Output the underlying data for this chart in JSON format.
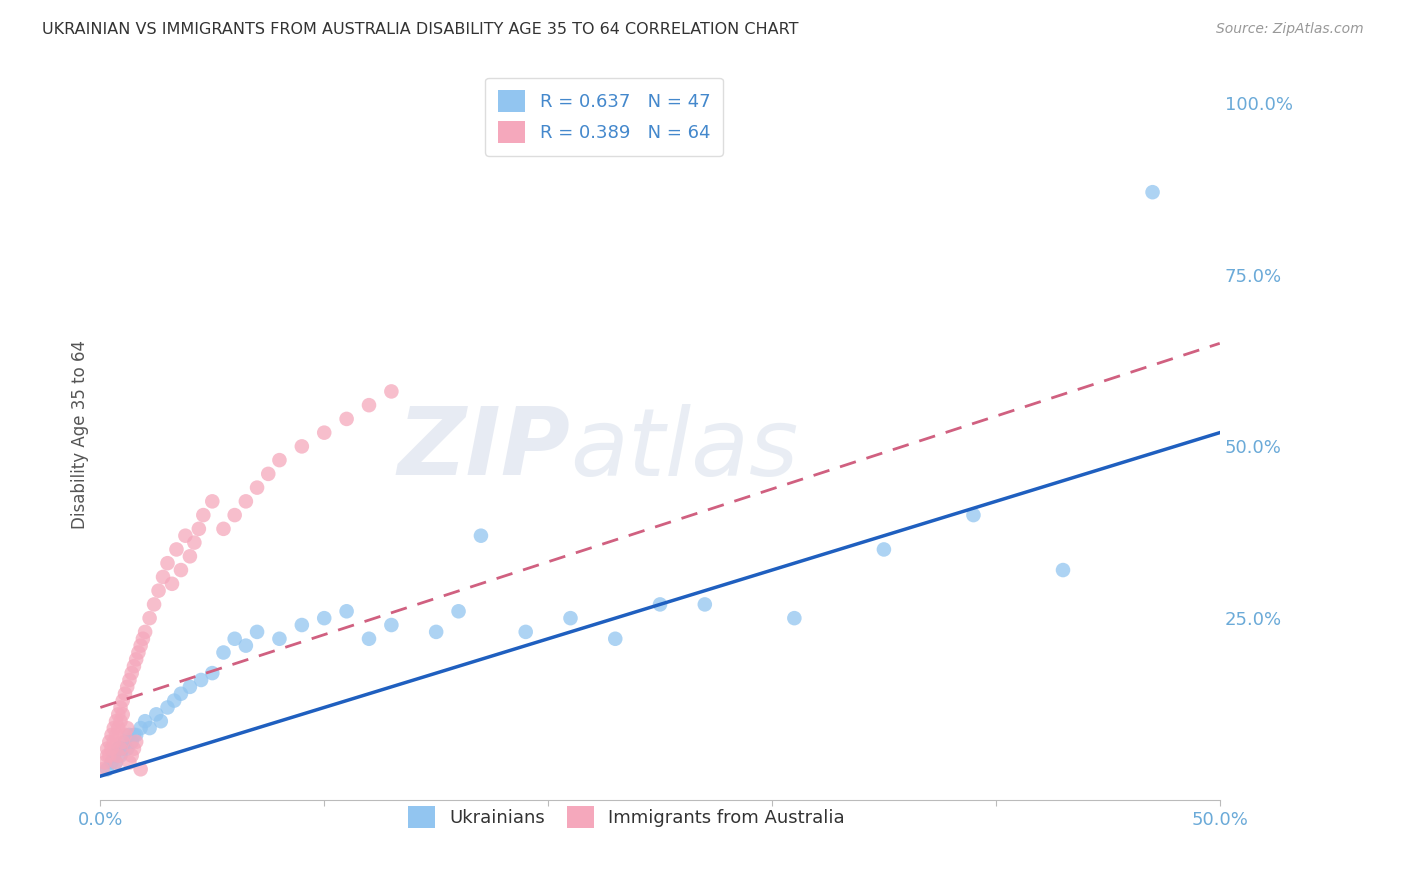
{
  "title": "UKRAINIAN VS IMMIGRANTS FROM AUSTRALIA DISABILITY AGE 35 TO 64 CORRELATION CHART",
  "source_text": "Source: ZipAtlas.com",
  "ylabel": "Disability Age 35 to 64",
  "watermark_zip": "ZIP",
  "watermark_atlas": "atlas",
  "xlim": [
    0.0,
    0.5
  ],
  "ylim": [
    -0.015,
    1.05
  ],
  "blue_color": "#92C5F0",
  "pink_color": "#F5A8BC",
  "blue_line_color": "#1F5FBF",
  "pink_line_color": "#D06080",
  "grid_color": "#CCCCCC",
  "background_color": "#FFFFFF",
  "title_color": "#333333",
  "axis_tick_color": "#6BAAD8",
  "legend_text_color": "#4488CC",
  "legend1_r": "R = 0.637",
  "legend1_n": "N = 47",
  "legend2_r": "R = 0.389",
  "legend2_n": "N = 64",
  "legend_bottom1": "Ukrainians",
  "legend_bottom2": "Immigrants from Australia",
  "blue_x": [
    0.003,
    0.005,
    0.006,
    0.007,
    0.008,
    0.009,
    0.01,
    0.011,
    0.012,
    0.013,
    0.014,
    0.015,
    0.016,
    0.018,
    0.02,
    0.022,
    0.025,
    0.027,
    0.03,
    0.033,
    0.036,
    0.04,
    0.045,
    0.05,
    0.055,
    0.06,
    0.065,
    0.07,
    0.08,
    0.09,
    0.1,
    0.11,
    0.12,
    0.13,
    0.15,
    0.16,
    0.17,
    0.19,
    0.21,
    0.23,
    0.25,
    0.27,
    0.31,
    0.35,
    0.39,
    0.43,
    0.47
  ],
  "blue_y": [
    0.03,
    0.04,
    0.05,
    0.04,
    0.06,
    0.05,
    0.06,
    0.07,
    0.06,
    0.08,
    0.07,
    0.08,
    0.08,
    0.09,
    0.1,
    0.09,
    0.11,
    0.1,
    0.12,
    0.13,
    0.14,
    0.15,
    0.16,
    0.17,
    0.2,
    0.22,
    0.21,
    0.23,
    0.22,
    0.24,
    0.25,
    0.26,
    0.22,
    0.24,
    0.23,
    0.26,
    0.37,
    0.23,
    0.25,
    0.22,
    0.27,
    0.27,
    0.25,
    0.35,
    0.4,
    0.32,
    0.87
  ],
  "pink_x": [
    0.001,
    0.002,
    0.003,
    0.003,
    0.004,
    0.004,
    0.005,
    0.005,
    0.006,
    0.006,
    0.007,
    0.007,
    0.008,
    0.008,
    0.009,
    0.009,
    0.01,
    0.01,
    0.011,
    0.012,
    0.013,
    0.014,
    0.015,
    0.016,
    0.017,
    0.018,
    0.019,
    0.02,
    0.022,
    0.024,
    0.026,
    0.028,
    0.03,
    0.032,
    0.034,
    0.036,
    0.038,
    0.04,
    0.042,
    0.044,
    0.046,
    0.05,
    0.055,
    0.06,
    0.065,
    0.07,
    0.075,
    0.08,
    0.09,
    0.1,
    0.11,
    0.12,
    0.13,
    0.007,
    0.008,
    0.009,
    0.01,
    0.011,
    0.012,
    0.013,
    0.014,
    0.015,
    0.016,
    0.018
  ],
  "pink_y": [
    0.03,
    0.04,
    0.05,
    0.06,
    0.05,
    0.07,
    0.06,
    0.08,
    0.07,
    0.09,
    0.08,
    0.1,
    0.09,
    0.11,
    0.1,
    0.12,
    0.11,
    0.13,
    0.14,
    0.15,
    0.16,
    0.17,
    0.18,
    0.19,
    0.2,
    0.21,
    0.22,
    0.23,
    0.25,
    0.27,
    0.29,
    0.31,
    0.33,
    0.3,
    0.35,
    0.32,
    0.37,
    0.34,
    0.36,
    0.38,
    0.4,
    0.42,
    0.38,
    0.4,
    0.42,
    0.44,
    0.46,
    0.48,
    0.5,
    0.52,
    0.54,
    0.56,
    0.58,
    0.04,
    0.05,
    0.06,
    0.07,
    0.08,
    0.09,
    0.04,
    0.05,
    0.06,
    0.07,
    0.03
  ],
  "blue_trend": [
    0.0,
    0.5,
    0.02,
    0.52
  ],
  "pink_trend": [
    0.0,
    0.5,
    0.12,
    0.65
  ]
}
